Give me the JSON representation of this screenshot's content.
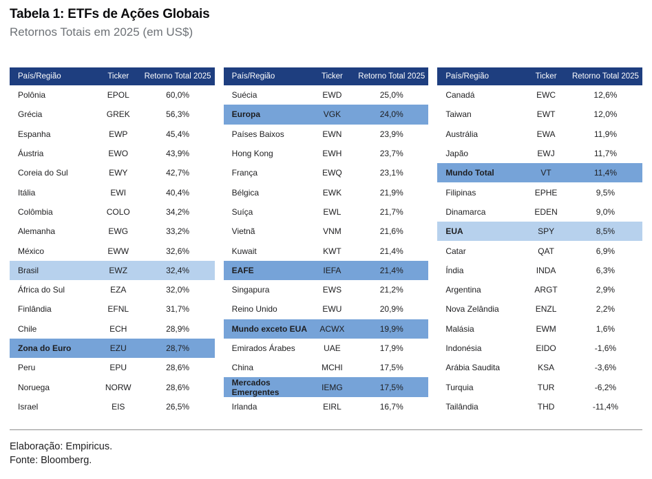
{
  "title": "Tabela 1: ETFs de Ações Globais",
  "subtitle": "Retornos Totais em 2025 (em US$)",
  "footer": {
    "line1": "Elaboração: Empiricus.",
    "line2": "Fonte: Bloomberg."
  },
  "colors": {
    "header_bg": "#1e3e7f",
    "header_text": "#ffffff",
    "highlight_light": "#b7d1ed",
    "highlight_medium": "#76a3d8"
  },
  "chart_data": {
    "type": "table",
    "title": "Tabela 1: ETFs de Ações Globais",
    "subtitle": "Retornos Totais em 2025 (em US$)",
    "columns": [
      "País/Região",
      "Ticker",
      "Retorno Total 2025"
    ],
    "tables": [
      {
        "rows": [
          {
            "region": "Polônia",
            "ticker": "EPOL",
            "value": "60,0%",
            "highlight": "none",
            "bold": false
          },
          {
            "region": "Grécia",
            "ticker": "GREK",
            "value": "56,3%",
            "highlight": "none",
            "bold": false
          },
          {
            "region": "Espanha",
            "ticker": "EWP",
            "value": "45,4%",
            "highlight": "none",
            "bold": false
          },
          {
            "region": "Áustria",
            "ticker": "EWO",
            "value": "43,9%",
            "highlight": "none",
            "bold": false
          },
          {
            "region": "Coreia do Sul",
            "ticker": "EWY",
            "value": "42,7%",
            "highlight": "none",
            "bold": false
          },
          {
            "region": "Itália",
            "ticker": "EWI",
            "value": "40,4%",
            "highlight": "none",
            "bold": false
          },
          {
            "region": "Colômbia",
            "ticker": "COLO",
            "value": "34,2%",
            "highlight": "none",
            "bold": false
          },
          {
            "region": "Alemanha",
            "ticker": "EWG",
            "value": "33,2%",
            "highlight": "none",
            "bold": false
          },
          {
            "region": "México",
            "ticker": "EWW",
            "value": "32,6%",
            "highlight": "none",
            "bold": false
          },
          {
            "region": "Brasil",
            "ticker": "EWZ",
            "value": "32,4%",
            "highlight": "light",
            "bold": false
          },
          {
            "region": "África do Sul",
            "ticker": "EZA",
            "value": "32,0%",
            "highlight": "none",
            "bold": false
          },
          {
            "region": "Finlândia",
            "ticker": "EFNL",
            "value": "31,7%",
            "highlight": "none",
            "bold": false
          },
          {
            "region": "Chile",
            "ticker": "ECH",
            "value": "28,9%",
            "highlight": "none",
            "bold": false
          },
          {
            "region": "Zona do Euro",
            "ticker": "EZU",
            "value": "28,7%",
            "highlight": "medium",
            "bold": true
          },
          {
            "region": "Peru",
            "ticker": "EPU",
            "value": "28,6%",
            "highlight": "none",
            "bold": false
          },
          {
            "region": "Noruega",
            "ticker": "NORW",
            "value": "28,6%",
            "highlight": "none",
            "bold": false
          },
          {
            "region": "Israel",
            "ticker": "EIS",
            "value": "26,5%",
            "highlight": "none",
            "bold": false
          }
        ]
      },
      {
        "rows": [
          {
            "region": "Suécia",
            "ticker": "EWD",
            "value": "25,0%",
            "highlight": "none",
            "bold": false
          },
          {
            "region": "Europa",
            "ticker": "VGK",
            "value": "24,0%",
            "highlight": "medium",
            "bold": true
          },
          {
            "region": "Países Baixos",
            "ticker": "EWN",
            "value": "23,9%",
            "highlight": "none",
            "bold": false
          },
          {
            "region": "Hong Kong",
            "ticker": "EWH",
            "value": "23,7%",
            "highlight": "none",
            "bold": false
          },
          {
            "region": "França",
            "ticker": "EWQ",
            "value": "23,1%",
            "highlight": "none",
            "bold": false
          },
          {
            "region": "Bélgica",
            "ticker": "EWK",
            "value": "21,9%",
            "highlight": "none",
            "bold": false
          },
          {
            "region": "Suíça",
            "ticker": "EWL",
            "value": "21,7%",
            "highlight": "none",
            "bold": false
          },
          {
            "region": "Vietnã",
            "ticker": "VNM",
            "value": "21,6%",
            "highlight": "none",
            "bold": false
          },
          {
            "region": "Kuwait",
            "ticker": "KWT",
            "value": "21,4%",
            "highlight": "none",
            "bold": false
          },
          {
            "region": "EAFE",
            "ticker": "IEFA",
            "value": "21,4%",
            "highlight": "medium",
            "bold": true
          },
          {
            "region": "Singapura",
            "ticker": "EWS",
            "value": "21,2%",
            "highlight": "none",
            "bold": false
          },
          {
            "region": "Reino Unido",
            "ticker": "EWU",
            "value": "20,9%",
            "highlight": "none",
            "bold": false
          },
          {
            "region": "Mundo exceto EUA",
            "ticker": "ACWX",
            "value": "19,9%",
            "highlight": "medium",
            "bold": true
          },
          {
            "region": "Emirados Árabes",
            "ticker": "UAE",
            "value": "17,9%",
            "highlight": "none",
            "bold": false
          },
          {
            "region": "China",
            "ticker": "MCHI",
            "value": "17,5%",
            "highlight": "none",
            "bold": false
          },
          {
            "region": "Mercados Emergentes",
            "ticker": "IEMG",
            "value": "17,5%",
            "highlight": "medium",
            "bold": true
          },
          {
            "region": "Irlanda",
            "ticker": "EIRL",
            "value": "16,7%",
            "highlight": "none",
            "bold": false
          }
        ]
      },
      {
        "rows": [
          {
            "region": "Canadá",
            "ticker": "EWC",
            "value": "12,6%",
            "highlight": "none",
            "bold": false
          },
          {
            "region": "Taiwan",
            "ticker": "EWT",
            "value": "12,0%",
            "highlight": "none",
            "bold": false
          },
          {
            "region": "Austrália",
            "ticker": "EWA",
            "value": "11,9%",
            "highlight": "none",
            "bold": false
          },
          {
            "region": "Japão",
            "ticker": "EWJ",
            "value": "11,7%",
            "highlight": "none",
            "bold": false
          },
          {
            "region": "Mundo Total",
            "ticker": "VT",
            "value": "11,4%",
            "highlight": "medium",
            "bold": true
          },
          {
            "region": "Filipinas",
            "ticker": "EPHE",
            "value": "9,5%",
            "highlight": "none",
            "bold": false
          },
          {
            "region": "Dinamarca",
            "ticker": "EDEN",
            "value": "9,0%",
            "highlight": "none",
            "bold": false
          },
          {
            "region": "EUA",
            "ticker": "SPY",
            "value": "8,5%",
            "highlight": "light",
            "bold": true
          },
          {
            "region": "Catar",
            "ticker": "QAT",
            "value": "6,9%",
            "highlight": "none",
            "bold": false
          },
          {
            "region": "Índia",
            "ticker": "INDA",
            "value": "6,3%",
            "highlight": "none",
            "bold": false
          },
          {
            "region": "Argentina",
            "ticker": "ARGT",
            "value": "2,9%",
            "highlight": "none",
            "bold": false
          },
          {
            "region": "Nova Zelândia",
            "ticker": "ENZL",
            "value": "2,2%",
            "highlight": "none",
            "bold": false
          },
          {
            "region": "Malásia",
            "ticker": "EWM",
            "value": "1,6%",
            "highlight": "none",
            "bold": false
          },
          {
            "region": "Indonésia",
            "ticker": "EIDO",
            "value": "-1,6%",
            "highlight": "none",
            "bold": false
          },
          {
            "region": "Arábia Saudita",
            "ticker": "KSA",
            "value": "-3,6%",
            "highlight": "none",
            "bold": false
          },
          {
            "region": "Turquia",
            "ticker": "TUR",
            "value": "-6,2%",
            "highlight": "none",
            "bold": false
          },
          {
            "region": "Tailândia",
            "ticker": "THD",
            "value": "-11,4%",
            "highlight": "none",
            "bold": false
          }
        ]
      }
    ]
  }
}
